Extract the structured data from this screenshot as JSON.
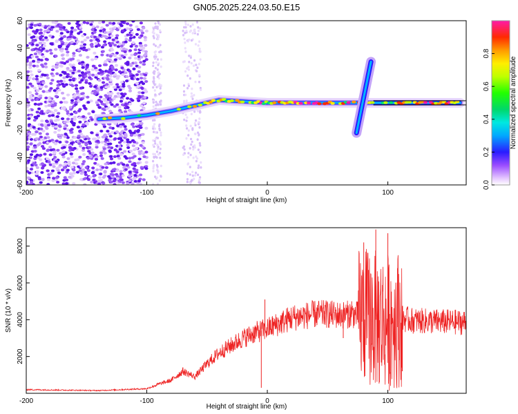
{
  "figure_title": "GN05.2025.224.03.50.E15",
  "chart_data": [
    {
      "type": "heatmap",
      "title": "GN05.2025.224.03.50.E15",
      "xlabel": "Height of straight line (km)",
      "ylabel": "Frequency (Hz)",
      "xlim": [
        -200,
        165
      ],
      "ylim": [
        -60,
        60
      ],
      "x_ticks": [
        -200,
        -100,
        0,
        100
      ],
      "y_ticks": [
        -60,
        -40,
        -20,
        0,
        20,
        40,
        60
      ],
      "grid": false,
      "colorbar": {
        "label": "Normalized spectral amplitude",
        "range": [
          0.0,
          1.0
        ],
        "ticks": [
          0.0,
          0.2,
          0.4,
          0.6,
          0.8
        ],
        "colormap": "rainbow"
      },
      "ridge": {
        "description_points": [
          [
            -140,
            -12
          ],
          [
            -120,
            -11
          ],
          [
            -100,
            -9
          ],
          [
            -80,
            -6
          ],
          [
            -60,
            -2
          ],
          [
            -40,
            2
          ],
          [
            -20,
            1
          ],
          [
            0,
            0
          ],
          [
            20,
            0
          ],
          [
            60,
            0
          ],
          [
            100,
            0
          ],
          [
            160,
            0
          ]
        ]
      },
      "burst": {
        "x_center": 80,
        "y_range": [
          -22,
          30
        ]
      },
      "noise_region_x": [
        -200,
        -100
      ],
      "striped_noise_x": [
        [
          -95,
          -88
        ],
        [
          -70,
          -55
        ]
      ]
    },
    {
      "type": "line",
      "xlabel": "Height of straight line (km)",
      "ylabel": "SNR (10 * v/v)",
      "xlim": [
        -200,
        165
      ],
      "ylim": [
        0,
        9000
      ],
      "x_ticks": [
        -200,
        -100,
        0,
        100
      ],
      "y_ticks": [
        2000,
        4000,
        6000,
        8000
      ],
      "grid": false,
      "series": [
        {
          "color": "#ee2222",
          "envelope": [
            [
              -200,
              200
            ],
            [
              -140,
              150
            ],
            [
              -100,
              250
            ],
            [
              -90,
              500
            ],
            [
              -80,
              700
            ],
            [
              -70,
              1200
            ],
            [
              -60,
              900
            ],
            [
              -50,
              1600
            ],
            [
              -40,
              2200
            ],
            [
              -30,
              2600
            ],
            [
              -20,
              3000
            ],
            [
              -10,
              3300
            ],
            [
              0,
              3500
            ],
            [
              10,
              3800
            ],
            [
              20,
              4100
            ],
            [
              30,
              4200
            ],
            [
              40,
              4300
            ],
            [
              50,
              4300
            ],
            [
              60,
              4250
            ],
            [
              70,
              4300
            ],
            [
              80,
              4200
            ],
            [
              90,
              4000
            ],
            [
              100,
              3900
            ],
            [
              110,
              4100
            ],
            [
              120,
              3950
            ],
            [
              140,
              3900
            ],
            [
              165,
              3850
            ]
          ],
          "spikes": [
            [
              -2,
              5100
            ],
            [
              -5,
              300
            ],
            [
              48,
              4800
            ],
            [
              63,
              3000
            ],
            [
              70,
              5000
            ],
            [
              80,
              8200
            ],
            [
              90,
              8900
            ],
            [
              93,
              600
            ],
            [
              100,
              8700
            ],
            [
              108,
              6800
            ],
            [
              112,
              1200
            ]
          ]
        }
      ]
    }
  ]
}
